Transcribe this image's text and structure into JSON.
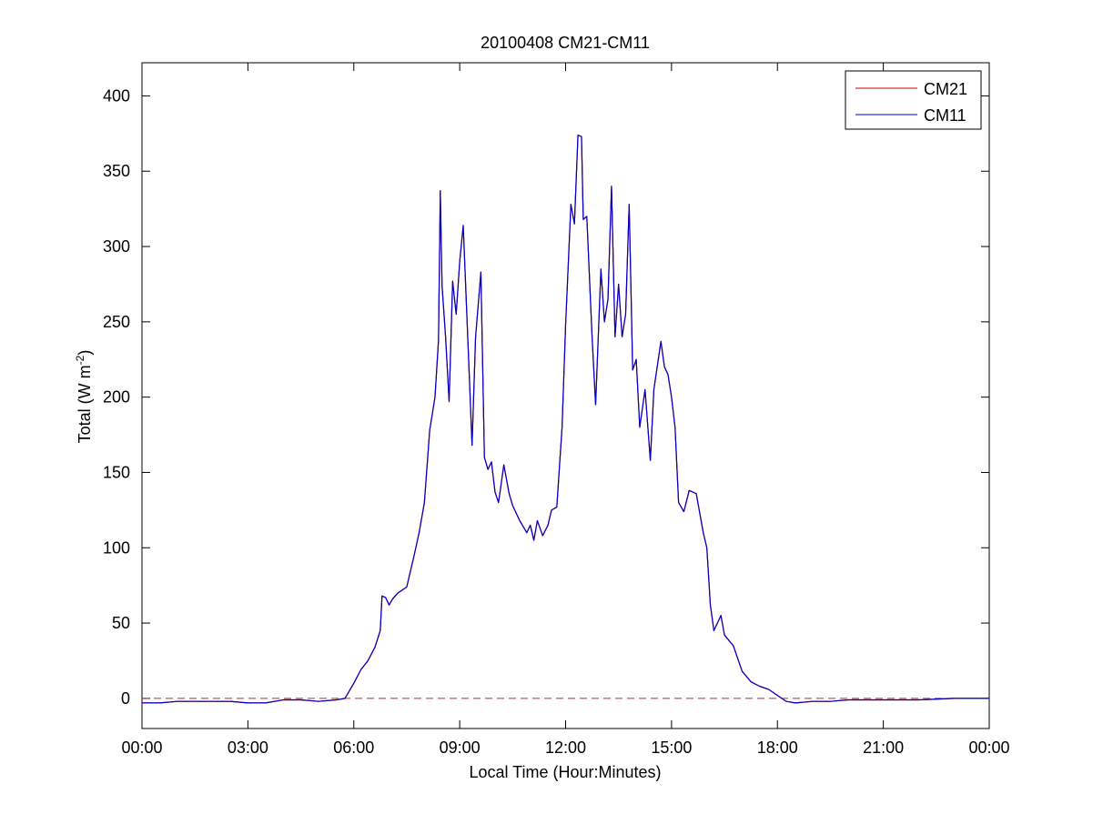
{
  "chart_data": {
    "type": "line",
    "title": "20100408 CM21-CM11",
    "xlabel": "Local Time (Hour:Minutes)",
    "ylabel": "Total (W m",
    "ylabel_superscript": "-2",
    "ylabel_close": ")",
    "x_ticks": [
      "00:00",
      "03:00",
      "06:00",
      "09:00",
      "12:00",
      "15:00",
      "18:00",
      "21:00",
      "00:00"
    ],
    "y_ticks": [
      "0",
      "50",
      "100",
      "150",
      "200",
      "250",
      "300",
      "350",
      "400"
    ],
    "xlim_hours": [
      0,
      24
    ],
    "ylim": [
      -20,
      422
    ],
    "grid": false,
    "legend_position": "top-right",
    "zero_reference_line": {
      "y": 0,
      "style": "dashed",
      "color": "#b03030"
    },
    "series": [
      {
        "name": "CM21",
        "color": "#cc0000",
        "points": [
          [
            0.0,
            -3
          ],
          [
            0.5,
            -3
          ],
          [
            1.0,
            -2
          ],
          [
            1.5,
            -2
          ],
          [
            2.0,
            -2
          ],
          [
            2.5,
            -2
          ],
          [
            3.0,
            -3
          ],
          [
            3.5,
            -3
          ],
          [
            4.0,
            -1
          ],
          [
            4.5,
            -1
          ],
          [
            5.0,
            -2
          ],
          [
            5.5,
            -1
          ],
          [
            5.75,
            0
          ],
          [
            6.0,
            10
          ],
          [
            6.2,
            19
          ],
          [
            6.4,
            25
          ],
          [
            6.6,
            34
          ],
          [
            6.75,
            45
          ],
          [
            6.8,
            68
          ],
          [
            6.9,
            67
          ],
          [
            7.0,
            62
          ],
          [
            7.1,
            66
          ],
          [
            7.25,
            70
          ],
          [
            7.5,
            74
          ],
          [
            7.7,
            94
          ],
          [
            7.85,
            110
          ],
          [
            8.0,
            130
          ],
          [
            8.15,
            178
          ],
          [
            8.3,
            200
          ],
          [
            8.4,
            238
          ],
          [
            8.45,
            337
          ],
          [
            8.5,
            274
          ],
          [
            8.6,
            240
          ],
          [
            8.7,
            197
          ],
          [
            8.8,
            277
          ],
          [
            8.9,
            255
          ],
          [
            9.0,
            290
          ],
          [
            9.1,
            314
          ],
          [
            9.25,
            227
          ],
          [
            9.35,
            168
          ],
          [
            9.45,
            240
          ],
          [
            9.6,
            283
          ],
          [
            9.7,
            160
          ],
          [
            9.8,
            152
          ],
          [
            9.9,
            157
          ],
          [
            10.0,
            137
          ],
          [
            10.1,
            130
          ],
          [
            10.25,
            155
          ],
          [
            10.4,
            136
          ],
          [
            10.5,
            128
          ],
          [
            10.7,
            118
          ],
          [
            10.9,
            110
          ],
          [
            11.0,
            115
          ],
          [
            11.1,
            105
          ],
          [
            11.2,
            118
          ],
          [
            11.35,
            108
          ],
          [
            11.5,
            115
          ],
          [
            11.6,
            125
          ],
          [
            11.75,
            127
          ],
          [
            11.9,
            180
          ],
          [
            12.0,
            248
          ],
          [
            12.15,
            328
          ],
          [
            12.25,
            315
          ],
          [
            12.35,
            374
          ],
          [
            12.45,
            373
          ],
          [
            12.5,
            318
          ],
          [
            12.6,
            320
          ],
          [
            12.75,
            240
          ],
          [
            12.85,
            195
          ],
          [
            13.0,
            285
          ],
          [
            13.1,
            250
          ],
          [
            13.2,
            265
          ],
          [
            13.3,
            340
          ],
          [
            13.4,
            240
          ],
          [
            13.5,
            275
          ],
          [
            13.6,
            240
          ],
          [
            13.7,
            255
          ],
          [
            13.8,
            328
          ],
          [
            13.9,
            218
          ],
          [
            14.0,
            225
          ],
          [
            14.1,
            180
          ],
          [
            14.25,
            205
          ],
          [
            14.4,
            158
          ],
          [
            14.5,
            205
          ],
          [
            14.7,
            237
          ],
          [
            14.8,
            220
          ],
          [
            14.9,
            215
          ],
          [
            15.0,
            200
          ],
          [
            15.1,
            180
          ],
          [
            15.2,
            130
          ],
          [
            15.35,
            124
          ],
          [
            15.5,
            138
          ],
          [
            15.7,
            136
          ],
          [
            15.9,
            110
          ],
          [
            16.0,
            100
          ],
          [
            16.1,
            62
          ],
          [
            16.2,
            45
          ],
          [
            16.4,
            55
          ],
          [
            16.5,
            42
          ],
          [
            16.75,
            35
          ],
          [
            17.0,
            18
          ],
          [
            17.25,
            11
          ],
          [
            17.5,
            8
          ],
          [
            17.75,
            6
          ],
          [
            18.0,
            2
          ],
          [
            18.25,
            -2
          ],
          [
            18.5,
            -3
          ],
          [
            19.0,
            -2
          ],
          [
            19.5,
            -2
          ],
          [
            20.0,
            -1
          ],
          [
            20.5,
            -1
          ],
          [
            21.0,
            -1
          ],
          [
            22.0,
            -1
          ],
          [
            23.0,
            0
          ],
          [
            24.0,
            0
          ]
        ]
      },
      {
        "name": "CM11",
        "color": "#0000cc",
        "points": [
          [
            0.0,
            -3
          ],
          [
            0.5,
            -3
          ],
          [
            1.0,
            -2
          ],
          [
            1.5,
            -2
          ],
          [
            2.0,
            -2
          ],
          [
            2.5,
            -2
          ],
          [
            3.0,
            -3
          ],
          [
            3.5,
            -3
          ],
          [
            4.0,
            -1
          ],
          [
            4.5,
            -1
          ],
          [
            5.0,
            -2
          ],
          [
            5.5,
            -1
          ],
          [
            5.75,
            0
          ],
          [
            6.0,
            10
          ],
          [
            6.2,
            19
          ],
          [
            6.4,
            25
          ],
          [
            6.6,
            34
          ],
          [
            6.75,
            45
          ],
          [
            6.8,
            68
          ],
          [
            6.9,
            67
          ],
          [
            7.0,
            62
          ],
          [
            7.1,
            66
          ],
          [
            7.25,
            70
          ],
          [
            7.5,
            74
          ],
          [
            7.7,
            94
          ],
          [
            7.85,
            110
          ],
          [
            8.0,
            130
          ],
          [
            8.15,
            178
          ],
          [
            8.3,
            200
          ],
          [
            8.4,
            238
          ],
          [
            8.45,
            337
          ],
          [
            8.5,
            274
          ],
          [
            8.6,
            240
          ],
          [
            8.7,
            197
          ],
          [
            8.8,
            277
          ],
          [
            8.9,
            255
          ],
          [
            9.0,
            290
          ],
          [
            9.1,
            314
          ],
          [
            9.25,
            227
          ],
          [
            9.35,
            168
          ],
          [
            9.45,
            240
          ],
          [
            9.6,
            283
          ],
          [
            9.7,
            160
          ],
          [
            9.8,
            152
          ],
          [
            9.9,
            157
          ],
          [
            10.0,
            137
          ],
          [
            10.1,
            130
          ],
          [
            10.25,
            155
          ],
          [
            10.4,
            136
          ],
          [
            10.5,
            128
          ],
          [
            10.7,
            118
          ],
          [
            10.9,
            110
          ],
          [
            11.0,
            115
          ],
          [
            11.1,
            105
          ],
          [
            11.2,
            118
          ],
          [
            11.35,
            108
          ],
          [
            11.5,
            115
          ],
          [
            11.6,
            125
          ],
          [
            11.75,
            127
          ],
          [
            11.9,
            180
          ],
          [
            12.0,
            248
          ],
          [
            12.15,
            328
          ],
          [
            12.25,
            315
          ],
          [
            12.35,
            374
          ],
          [
            12.45,
            373
          ],
          [
            12.5,
            318
          ],
          [
            12.6,
            320
          ],
          [
            12.75,
            240
          ],
          [
            12.85,
            195
          ],
          [
            13.0,
            285
          ],
          [
            13.1,
            250
          ],
          [
            13.2,
            265
          ],
          [
            13.3,
            340
          ],
          [
            13.4,
            240
          ],
          [
            13.5,
            275
          ],
          [
            13.6,
            240
          ],
          [
            13.7,
            255
          ],
          [
            13.8,
            328
          ],
          [
            13.9,
            218
          ],
          [
            14.0,
            225
          ],
          [
            14.1,
            180
          ],
          [
            14.25,
            205
          ],
          [
            14.4,
            158
          ],
          [
            14.5,
            205
          ],
          [
            14.7,
            237
          ],
          [
            14.8,
            220
          ],
          [
            14.9,
            215
          ],
          [
            15.0,
            200
          ],
          [
            15.1,
            180
          ],
          [
            15.2,
            130
          ],
          [
            15.35,
            124
          ],
          [
            15.5,
            138
          ],
          [
            15.7,
            136
          ],
          [
            15.9,
            110
          ],
          [
            16.0,
            100
          ],
          [
            16.1,
            62
          ],
          [
            16.2,
            45
          ],
          [
            16.4,
            55
          ],
          [
            16.5,
            42
          ],
          [
            16.75,
            35
          ],
          [
            17.0,
            18
          ],
          [
            17.25,
            11
          ],
          [
            17.5,
            8
          ],
          [
            17.75,
            6
          ],
          [
            18.0,
            2
          ],
          [
            18.25,
            -2
          ],
          [
            18.5,
            -3
          ],
          [
            19.0,
            -2
          ],
          [
            19.5,
            -2
          ],
          [
            20.0,
            -1
          ],
          [
            20.5,
            -1
          ],
          [
            21.0,
            -1
          ],
          [
            22.0,
            -1
          ],
          [
            23.0,
            0
          ],
          [
            24.0,
            0
          ]
        ]
      }
    ]
  }
}
